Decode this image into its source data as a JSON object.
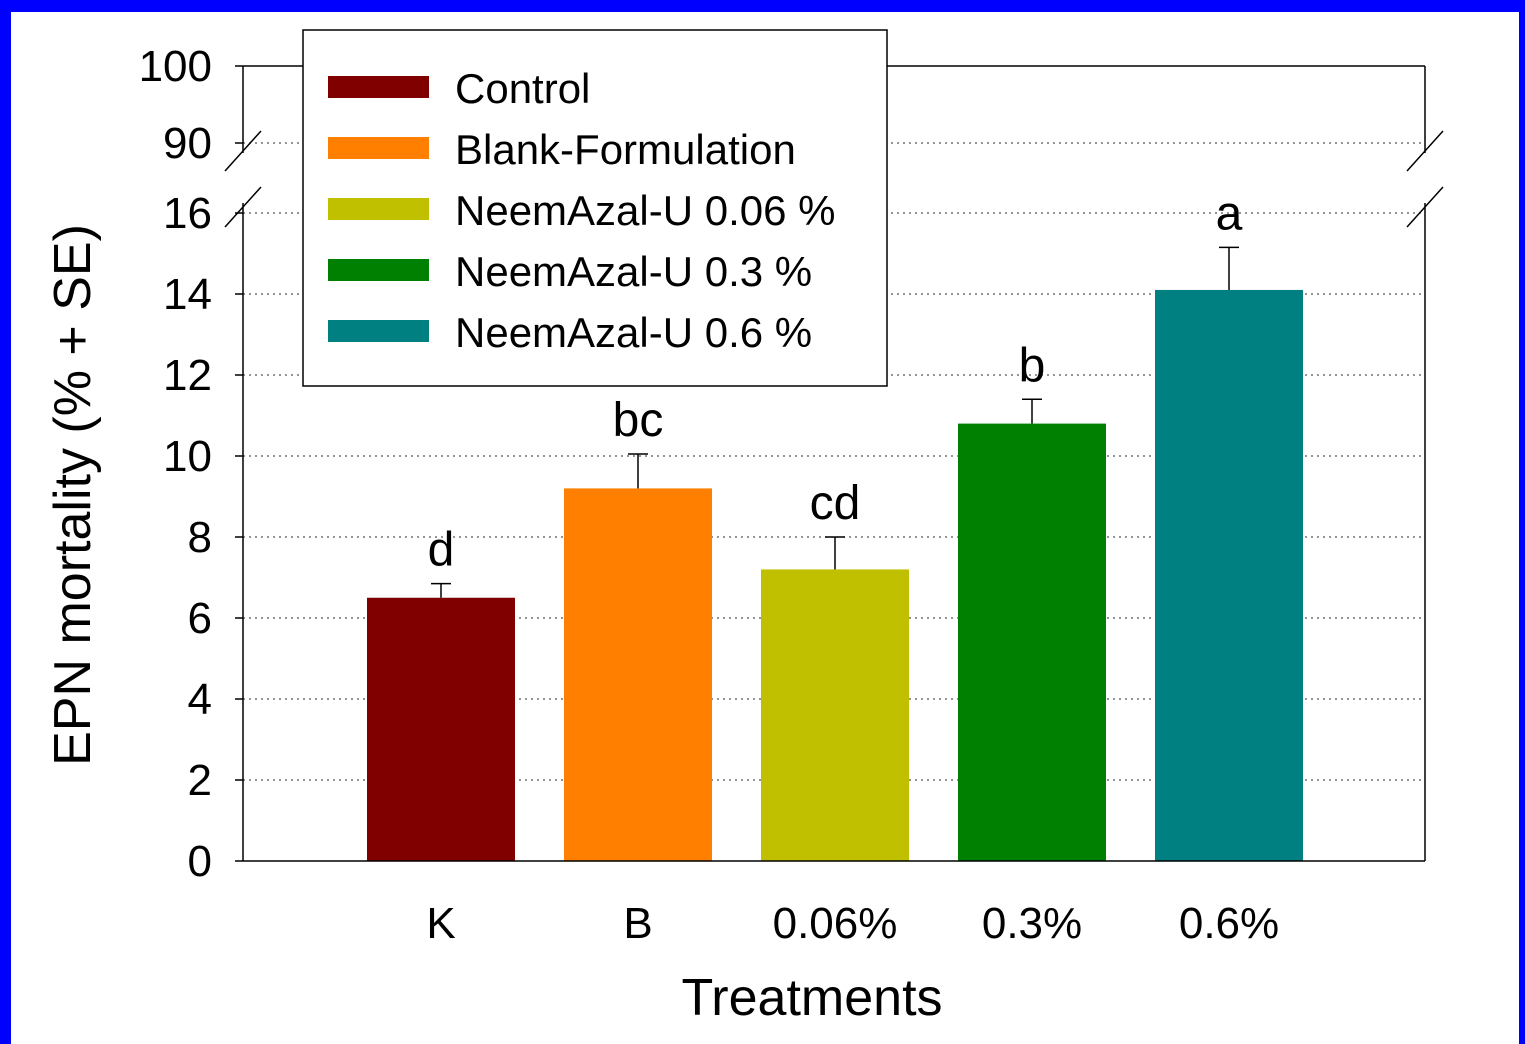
{
  "chart_data": {
    "type": "bar",
    "xlabel": "Treatments",
    "ylabel": "EPN mortality (% + SE)",
    "categories": [
      "K",
      "B",
      "0.06%",
      "0.3%",
      "0.6%"
    ],
    "values": [
      6.5,
      9.2,
      7.2,
      10.8,
      14.1
    ],
    "errors": [
      0.35,
      0.85,
      0.8,
      0.6,
      1.05
    ],
    "significance": [
      "d",
      "bc",
      "cd",
      "b",
      "a"
    ],
    "colors": [
      "#800000",
      "#ff8000",
      "#c0c000",
      "#008000",
      "#008080"
    ],
    "legend": [
      "Control",
      "Blank-Formulation",
      "NeemAzal-U 0.06 %",
      "NeemAzal-U 0.3 %",
      "NeemAzal-U 0.6 %"
    ],
    "legend_position": "top-left",
    "ylim_lower": [
      0,
      16
    ],
    "ylim_upper": [
      90,
      100
    ],
    "yticks_lower": [
      0,
      2,
      4,
      6,
      8,
      10,
      12,
      14,
      16
    ],
    "yticks_upper": [
      90,
      100
    ],
    "axis_break": true,
    "grid": "dotted horizontal"
  }
}
